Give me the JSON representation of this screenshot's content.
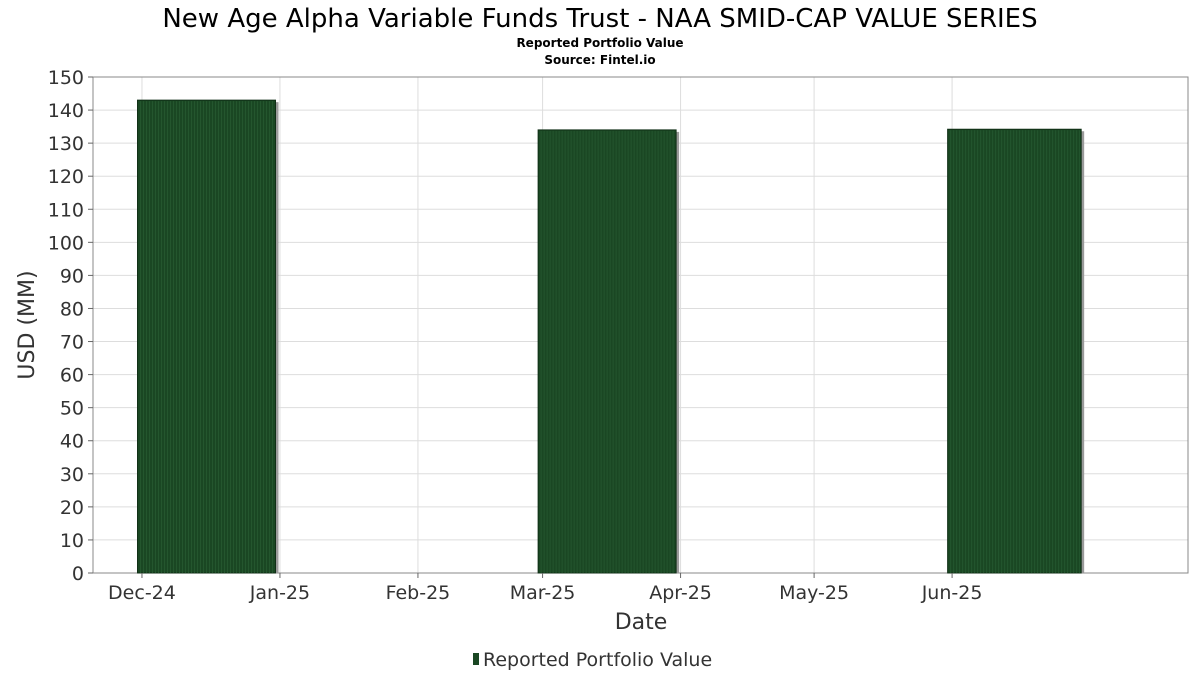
{
  "chart_data": {
    "type": "bar",
    "title": "New Age Alpha Variable Funds Trust - NAA SMID-CAP VALUE SERIES",
    "subtitle": "Reported Portfolio Value",
    "source": "Source: Fintel.io",
    "xlabel": "Date",
    "ylabel": "USD (MM)",
    "ylim": [
      0,
      150
    ],
    "yticks": [
      0,
      10,
      20,
      30,
      40,
      50,
      60,
      70,
      80,
      90,
      100,
      110,
      120,
      130,
      140,
      150
    ],
    "xlim": [
      "2024-11-20",
      "2025-07-24"
    ],
    "xticks": [
      {
        "date": "2024-12-01",
        "label": "Dec-24"
      },
      {
        "date": "2025-01-01",
        "label": "Jan-25"
      },
      {
        "date": "2025-02-01",
        "label": "Feb-25"
      },
      {
        "date": "2025-03-01",
        "label": "Mar-25"
      },
      {
        "date": "2025-04-01",
        "label": "Apr-25"
      },
      {
        "date": "2025-05-01",
        "label": "May-25"
      },
      {
        "date": "2025-06-01",
        "label": "Jun-25"
      }
    ],
    "grid": true,
    "legend_position": "bottom-center",
    "series": [
      {
        "name": "Reported Portfolio Value",
        "color": "#1a4723",
        "points": [
          {
            "start": "2024-11-30",
            "end": "2024-12-31",
            "value": 143.0
          },
          {
            "start": "2025-02-28",
            "end": "2025-03-31",
            "value": 134.0
          },
          {
            "start": "2025-05-31",
            "end": "2025-06-30",
            "value": 134.2
          }
        ]
      }
    ]
  }
}
